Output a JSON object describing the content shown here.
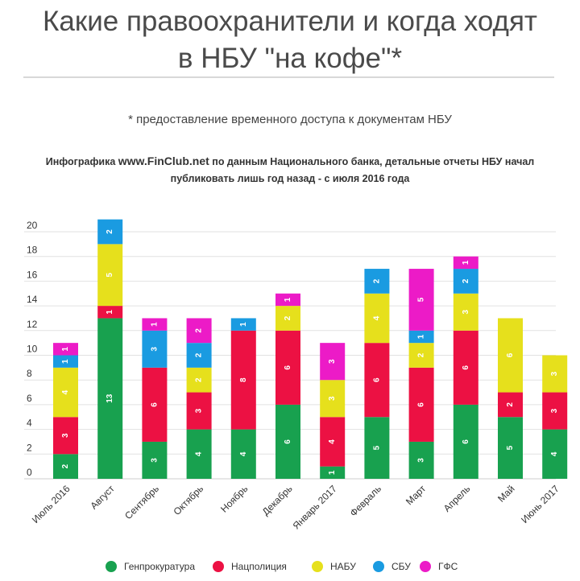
{
  "header": {
    "title_line1": "Какие правоохранители и когда ходят",
    "title_line2": "в НБУ \"на кофе\"*",
    "subtitle": "* предоставление временного доступа к документам НБУ",
    "source_prefix": "Инфографика ",
    "source_site": "www.FinClub.net",
    "source_line1_rest": " по данным Национального банка, детальные отчеты НБУ начал",
    "source_line2": "публиковать лишь год назад - с июля 2016 года"
  },
  "chart_data": {
    "type": "bar",
    "stacked": true,
    "title": "",
    "xlabel": "",
    "ylabel": "",
    "ylim": [
      0,
      22
    ],
    "yticks": [
      0,
      2,
      4,
      6,
      8,
      10,
      12,
      14,
      16,
      18,
      20
    ],
    "grid": true,
    "legend_position": "bottom",
    "categories": [
      "Июль 2016",
      "Август",
      "Сентябрь",
      "Октябрь",
      "Ноябрь",
      "Декабрь",
      "Январь 2017",
      "Февраль",
      "Март",
      "Апрель",
      "Май",
      "Июнь 2017"
    ],
    "series": [
      {
        "name": "Генпрокуратура",
        "color": "#18a14f",
        "values": [
          2,
          13,
          3,
          4,
          4,
          6,
          1,
          5,
          3,
          6,
          5,
          4
        ]
      },
      {
        "name": "Нацполиция",
        "color": "#ec1143",
        "values": [
          3,
          1,
          6,
          3,
          8,
          6,
          4,
          6,
          6,
          6,
          2,
          3
        ]
      },
      {
        "name": "НАБУ",
        "color": "#e6e01c",
        "values": [
          4,
          5,
          0,
          2,
          0,
          2,
          3,
          4,
          2,
          3,
          6,
          3
        ]
      },
      {
        "name": "СБУ",
        "color": "#1a9be1",
        "values": [
          1,
          2,
          3,
          2,
          1,
          0,
          0,
          2,
          1,
          2,
          0,
          0
        ]
      },
      {
        "name": "ГФС",
        "color": "#ec1bc7",
        "values": [
          1,
          0,
          1,
          2,
          0,
          1,
          3,
          0,
          5,
          1,
          0,
          0
        ]
      }
    ]
  }
}
